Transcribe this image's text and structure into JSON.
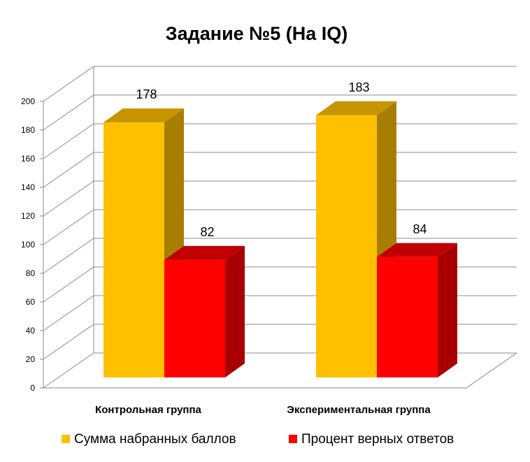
{
  "chart_data": {
    "type": "bar",
    "title": "Задание №5 (На IQ)",
    "categories": [
      "Контрольная группа",
      "Экспериментальная группа"
    ],
    "series": [
      {
        "name": "Сумма набранных баллов",
        "values": [
          178,
          183
        ],
        "color": "#FFC000",
        "side_color": "#A87E00",
        "top_color": "#C79500"
      },
      {
        "name": "Процент верных ответов",
        "values": [
          82,
          84
        ],
        "color": "#FF0000",
        "side_color": "#A80000",
        "top_color": "#C00000"
      }
    ],
    "y_ticks": [
      "0",
      "20",
      "40",
      "60",
      "80",
      "100",
      "120",
      "140",
      "160",
      "180",
      "200"
    ],
    "ylim": [
      0,
      200
    ],
    "grid": true,
    "legend_position": "bottom"
  }
}
